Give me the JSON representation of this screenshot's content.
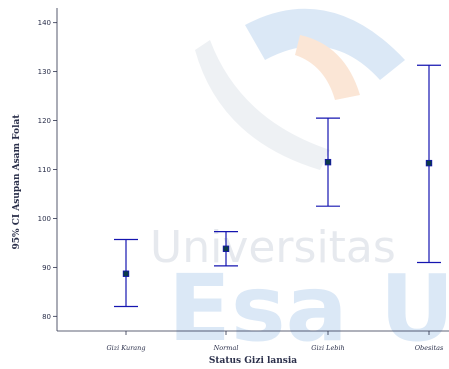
{
  "watermark": {
    "line1": "Universitas",
    "line2": "Esa U",
    "colors": {
      "grey": "#e6e9ee",
      "blue": "#dbe8f6",
      "orange": "#fbe6d6"
    }
  },
  "chart_data": {
    "type": "errorbar",
    "xlabel": "Status Gizi lansia",
    "ylabel": "95% CI Asupan Asam Folat",
    "categories": [
      "Gizi Kurang",
      "Normal",
      "Gizi Lebih",
      "Obesitas"
    ],
    "ylim": [
      77,
      143
    ],
    "yticks": [
      80,
      90,
      100,
      110,
      120,
      130,
      140
    ],
    "series": [
      {
        "mean": [
          88.7,
          93.8,
          111.5,
          111.3
        ],
        "lower": [
          82.0,
          90.3,
          102.5,
          91.0
        ],
        "upper": [
          95.7,
          97.3,
          120.5,
          131.3
        ]
      }
    ],
    "colors": {
      "bar": "#1515b0",
      "marker": "#0c3a4a",
      "axis": "#2a2f4a"
    },
    "grid": false,
    "legend": "none"
  }
}
